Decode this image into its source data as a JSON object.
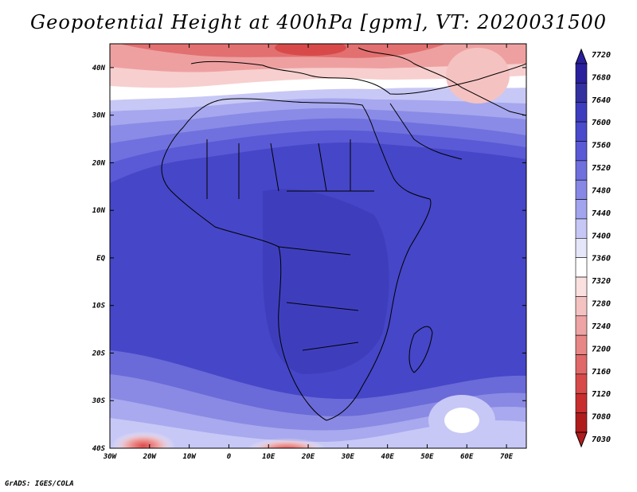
{
  "title": "Geopotential Height at 400hPa [gpm], VT: 2020031500",
  "credit": "GrADS: IGES/COLA",
  "map": {
    "lat_labels": [
      "40N",
      "30N",
      "20N",
      "10N",
      "EQ",
      "10S",
      "20S",
      "30S",
      "40S"
    ],
    "lon_labels": [
      "30W",
      "20W",
      "10W",
      "0",
      "10E",
      "20E",
      "30E",
      "40E",
      "50E",
      "60E",
      "70E"
    ],
    "lon_range": [
      -30,
      75
    ],
    "lat_range": [
      -40,
      45
    ]
  },
  "colorbar": {
    "labels": [
      "7720",
      "7680",
      "7640",
      "7600",
      "7560",
      "7520",
      "7480",
      "7440",
      "7400",
      "7360",
      "7320",
      "7280",
      "7240",
      "7200",
      "7160",
      "7120",
      "7080",
      "7030"
    ],
    "colors": [
      "#2a1f9c",
      "#33309f",
      "#3d3dbf",
      "#4a4acd",
      "#5a5ad6",
      "#6f70de",
      "#8788e6",
      "#a3a4ee",
      "#c6c7f5",
      "#e6e6fb",
      "#ffffff",
      "#fbe0e0",
      "#f5c2c2",
      "#eea4a4",
      "#e88686",
      "#e06868",
      "#d84a4a",
      "#c82e2e",
      "#b01c1c"
    ]
  },
  "chart_data": {
    "type": "heatmap",
    "title": "Geopotential Height at 400hPa [gpm], VT: 2020031500",
    "x_ticks": [
      "30W",
      "20W",
      "10W",
      "0",
      "10E",
      "20E",
      "30E",
      "40E",
      "50E",
      "60E",
      "70E"
    ],
    "y_ticks": [
      "40N",
      "30N",
      "20N",
      "10N",
      "EQ",
      "10S",
      "20S",
      "30S",
      "40S"
    ],
    "colorbar_levels": [
      7030,
      7080,
      7120,
      7160,
      7200,
      7240,
      7280,
      7320,
      7360,
      7400,
      7440,
      7480,
      7520,
      7560,
      7600,
      7640,
      7680,
      7720
    ]
  }
}
